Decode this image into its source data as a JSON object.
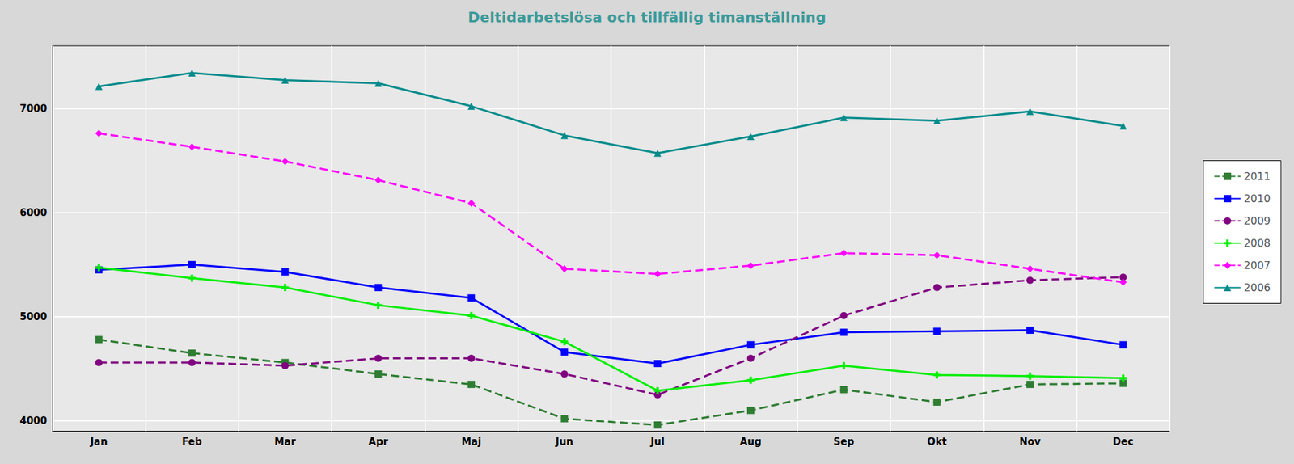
{
  "chart_data": {
    "type": "line",
    "title": "Deltidarbetslösa och tillfällig timanställning",
    "categories": [
      "Jan",
      "Feb",
      "Mar",
      "Apr",
      "Maj",
      "Jun",
      "Jul",
      "Aug",
      "Sep",
      "Okt",
      "Nov",
      "Dec"
    ],
    "series": [
      {
        "name": "2011",
        "color": "#2E7D32",
        "marker": "square",
        "line_style": "dashed",
        "values": [
          4780,
          4650,
          4560,
          4450,
          4350,
          4020,
          3960,
          4100,
          4300,
          4180,
          4350,
          4360
        ]
      },
      {
        "name": "2010",
        "color": "#0000FF",
        "marker": "square",
        "line_style": "solid",
        "values": [
          5450,
          5500,
          5430,
          5280,
          5180,
          4660,
          4550,
          4730,
          4850,
          4860,
          4870,
          4730
        ]
      },
      {
        "name": "2009",
        "color": "#800080",
        "marker": "circle",
        "line_style": "dashed",
        "values": [
          4560,
          4560,
          4530,
          4600,
          4600,
          4450,
          4250,
          4600,
          5010,
          5280,
          5350,
          5380
        ]
      },
      {
        "name": "2008",
        "color": "#00EE00",
        "marker": "plus",
        "line_style": "solid",
        "values": [
          5470,
          5370,
          5280,
          5110,
          5010,
          4760,
          4290,
          4390,
          4530,
          4440,
          4430,
          4410
        ]
      },
      {
        "name": "2007",
        "color": "#FF00FF",
        "marker": "diamond",
        "line_style": "dashed",
        "values": [
          6760,
          6630,
          6490,
          6310,
          6090,
          5460,
          5410,
          5490,
          5610,
          5590,
          5460,
          5330
        ]
      },
      {
        "name": "2006",
        "color": "#008B8B",
        "marker": "triangle",
        "line_style": "solid",
        "values": [
          7210,
          7340,
          7270,
          7240,
          7020,
          6740,
          6570,
          6730,
          6910,
          6880,
          6970,
          6830
        ]
      }
    ],
    "ylim": [
      3900,
      7600
    ],
    "yticks": [
      4000,
      5000,
      6000,
      7000
    ],
    "grid": true,
    "legend": "right"
  }
}
